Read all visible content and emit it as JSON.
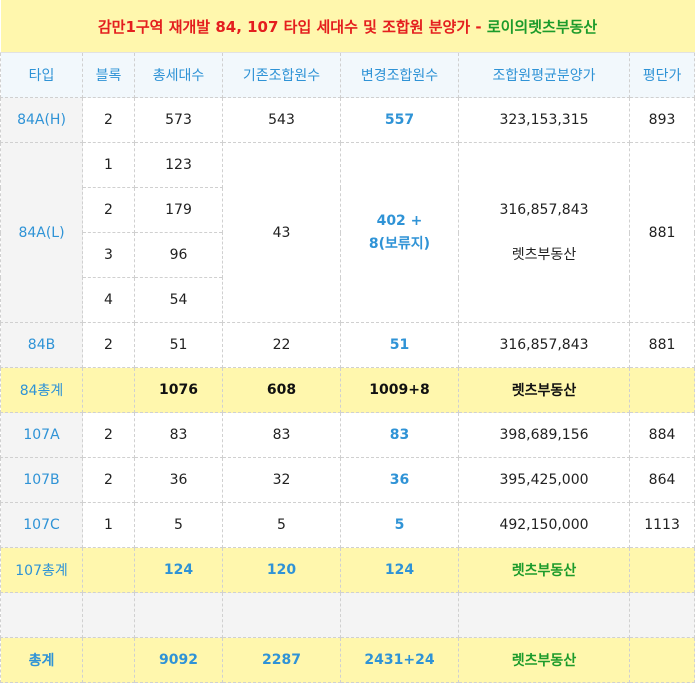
{
  "title": {
    "main": "감만1구역 재개발 84, 107 타입 세대수 및 조합원 분양가",
    "sep": " - ",
    "source": "로이의렛츠부동산"
  },
  "headers": [
    "타입",
    "블록",
    "총세대수",
    "기존조합원수",
    "변경조합원수",
    "조합원평균분양가",
    "평단가"
  ],
  "rows": {
    "r84AH": {
      "type": "84A(H)",
      "block": "2",
      "total": "573",
      "existing": "543",
      "changed": "557",
      "price": "323,153,315",
      "ppy": "893"
    },
    "r84AL": {
      "type": "84A(L)",
      "blocks": [
        {
          "block": "1",
          "total": "123"
        },
        {
          "block": "2",
          "total": "179"
        },
        {
          "block": "3",
          "total": "96"
        },
        {
          "block": "4",
          "total": "54"
        }
      ],
      "existing": "43",
      "changed_line1": "402 +",
      "changed_line2": "8(보류지)",
      "price": "316,857,843",
      "watermark": "렛츠부동산",
      "ppy": "881"
    },
    "r84B": {
      "type": "84B",
      "block": "2",
      "total": "51",
      "existing": "22",
      "changed": "51",
      "price": "316,857,843",
      "ppy": "881"
    },
    "sum84": {
      "label": "84총계",
      "total": "1076",
      "existing": "608",
      "changed": "1009+8",
      "brand": "렛츠부동산"
    },
    "r107A": {
      "type": "107A",
      "block": "2",
      "total": "83",
      "existing": "83",
      "changed": "83",
      "price": "398,689,156",
      "ppy": "884"
    },
    "r107B": {
      "type": "107B",
      "block": "2",
      "total": "36",
      "existing": "32",
      "changed": "36",
      "price": "395,425,000",
      "ppy": "864"
    },
    "r107C": {
      "type": "107C",
      "block": "1",
      "total": "5",
      "existing": "5",
      "changed": "5",
      "price": "492,150,000",
      "ppy": "1113"
    },
    "sum107": {
      "label": "107총계",
      "total": "124",
      "existing": "120",
      "changed": "124",
      "brand": "렛츠부동산"
    },
    "grand": {
      "label": "총계",
      "total": "9092",
      "existing": "2287",
      "changed": "2431+24",
      "brand": "렛츠부동산"
    }
  }
}
